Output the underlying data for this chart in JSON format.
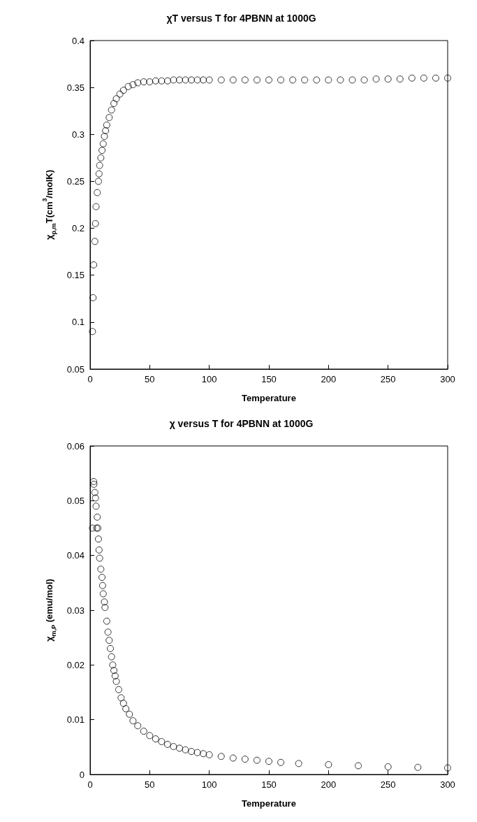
{
  "chart_data": [
    {
      "type": "scatter",
      "title": "χT versus T for 4PBNN at 1000G",
      "xlabel": "Temperature",
      "ylabel": "χ$_{p,m}$T(cm$^{3}$/molK)",
      "xlim": [
        0,
        300
      ],
      "xticks": [
        0,
        50,
        100,
        150,
        200,
        250,
        300
      ],
      "ylim": [
        0.05,
        0.4
      ],
      "yticks": [
        0.05,
        0.1,
        0.15,
        0.2,
        0.25,
        0.3,
        0.35,
        0.4
      ],
      "grid": false,
      "marker": "circle",
      "series": [
        {
          "color": "#000000",
          "x": [
            2,
            2.5,
            3,
            4,
            4.5,
            5,
            6,
            7,
            7.5,
            8,
            9,
            10,
            11,
            12,
            13,
            14,
            16,
            18,
            20,
            22,
            25,
            28,
            32,
            36,
            40,
            45,
            50,
            55,
            60,
            65,
            70,
            75,
            80,
            85,
            90,
            95,
            100,
            110,
            120,
            130,
            140,
            150,
            160,
            170,
            180,
            190,
            200,
            210,
            220,
            230,
            240,
            250,
            260,
            270,
            280,
            290,
            300
          ],
          "values": [
            0.09,
            0.126,
            0.161,
            0.186,
            0.205,
            0.223,
            0.238,
            0.25,
            0.258,
            0.267,
            0.275,
            0.283,
            0.29,
            0.298,
            0.304,
            0.31,
            0.318,
            0.326,
            0.333,
            0.338,
            0.343,
            0.347,
            0.351,
            0.353,
            0.355,
            0.356,
            0.356,
            0.357,
            0.357,
            0.357,
            0.358,
            0.358,
            0.358,
            0.358,
            0.358,
            0.358,
            0.358,
            0.358,
            0.358,
            0.358,
            0.358,
            0.358,
            0.358,
            0.358,
            0.358,
            0.358,
            0.358,
            0.358,
            0.358,
            0.358,
            0.359,
            0.359,
            0.359,
            0.36,
            0.36,
            0.36,
            0.36
          ]
        }
      ]
    },
    {
      "type": "scatter",
      "title": "χ versus T for 4PBNN at 1000G",
      "xlabel": "Temperature",
      "ylabel": "χ$_{m,P}$ (emu/mol)",
      "xlim": [
        0,
        300
      ],
      "xticks": [
        0,
        50,
        100,
        150,
        200,
        250,
        300
      ],
      "ylim": [
        0,
        0.06
      ],
      "yticks": [
        0,
        0.01,
        0.02,
        0.03,
        0.04,
        0.05,
        0.06
      ],
      "grid": false,
      "marker": "circle",
      "series": [
        {
          "color": "#000000",
          "x": [
            2,
            3,
            3.2,
            4,
            4.5,
            5,
            5.5,
            6,
            6.5,
            7,
            7.5,
            8,
            9,
            10,
            10.5,
            11,
            12,
            12.5,
            14,
            15,
            16,
            17,
            18,
            19,
            20,
            21,
            22,
            24,
            26,
            28,
            30,
            33,
            36,
            40,
            45,
            50,
            55,
            60,
            65,
            70,
            75,
            80,
            85,
            90,
            95,
            100,
            110,
            120,
            130,
            140,
            150,
            160,
            175,
            200,
            225,
            250,
            275,
            300
          ],
          "values": [
            0.045,
            0.0535,
            0.053,
            0.0515,
            0.0505,
            0.049,
            0.045,
            0.047,
            0.045,
            0.043,
            0.041,
            0.0395,
            0.0375,
            0.036,
            0.0345,
            0.033,
            0.0315,
            0.0305,
            0.028,
            0.026,
            0.0245,
            0.023,
            0.0215,
            0.02,
            0.019,
            0.018,
            0.017,
            0.0155,
            0.014,
            0.013,
            0.012,
            0.011,
            0.0098,
            0.0089,
            0.0079,
            0.0071,
            0.0065,
            0.006,
            0.0055,
            0.0051,
            0.0048,
            0.0045,
            0.0042,
            0.004,
            0.0038,
            0.0036,
            0.0033,
            0.003,
            0.0028,
            0.0026,
            0.0024,
            0.0022,
            0.002,
            0.0018,
            0.0016,
            0.0014,
            0.0013,
            0.0012
          ]
        }
      ]
    }
  ]
}
